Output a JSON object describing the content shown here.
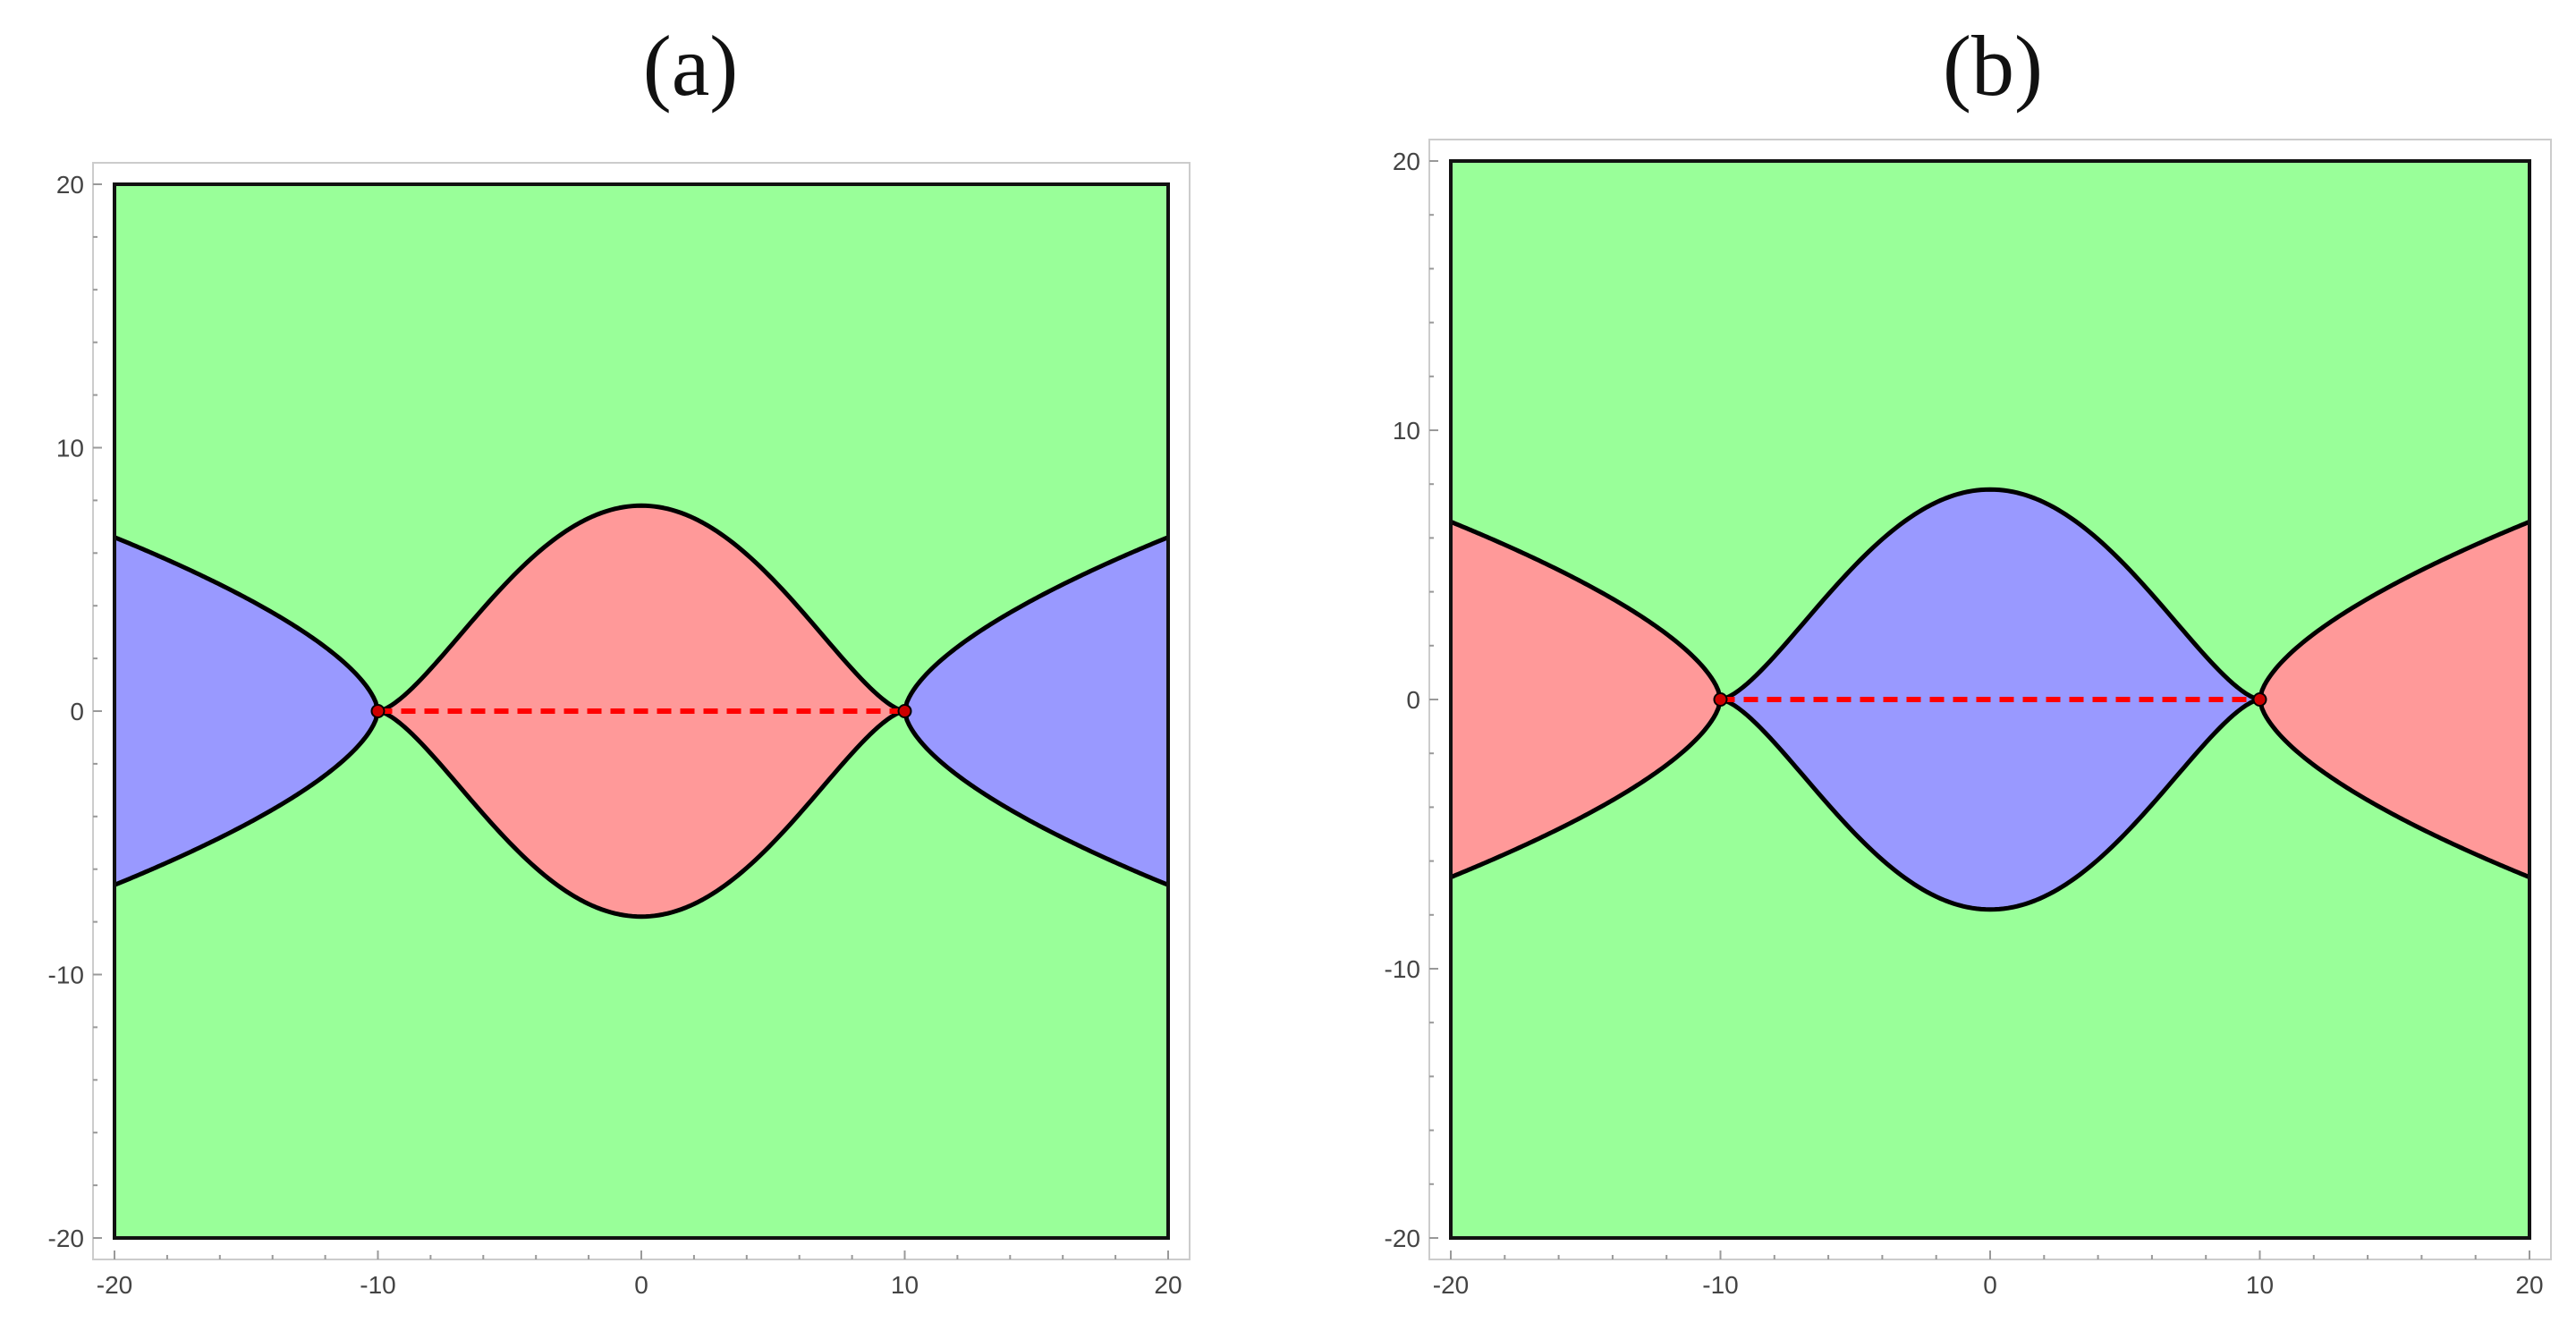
{
  "figure": {
    "panels": [
      {
        "label": "(a)",
        "inner_color": "#ff9999",
        "outer_color": "#9999ff",
        "background_color": "#99ff99",
        "x_ticks": [
          "-20",
          "-10",
          "0",
          "10",
          "20"
        ],
        "y_ticks": [
          "20",
          "10",
          "0",
          "-10",
          "-20"
        ]
      },
      {
        "label": "(b)",
        "inner_color": "#9999ff",
        "outer_color": "#ff9999",
        "background_color": "#99ff99",
        "x_ticks": [
          "-20",
          "-10",
          "0",
          "10",
          "20"
        ],
        "y_ticks": [
          "20",
          "10",
          "0",
          "-10",
          "-20"
        ]
      }
    ],
    "boundary_color": "#000000",
    "cut_color": "#ff0000",
    "branch_points": [
      -10,
      10
    ],
    "axis_range": [
      -20,
      20
    ]
  }
}
